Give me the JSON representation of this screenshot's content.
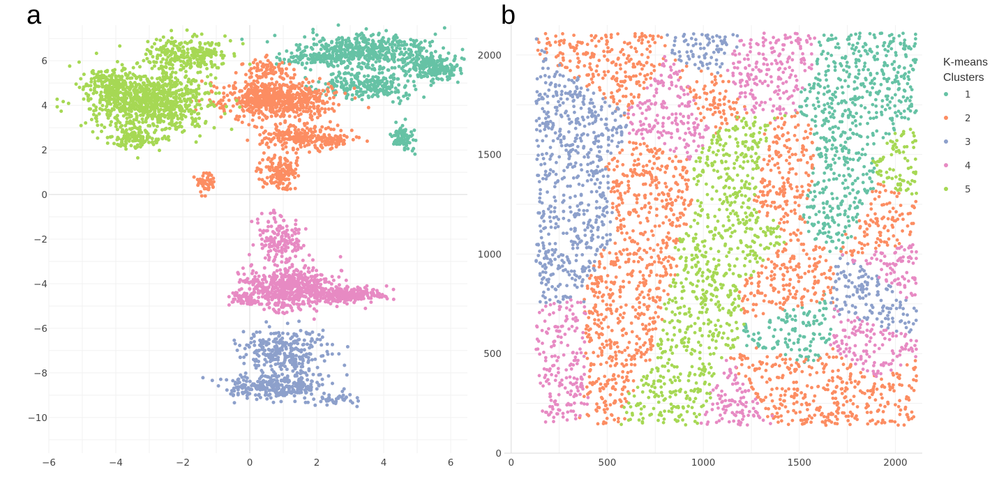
{
  "chart_data": [
    {
      "type": "scatter",
      "panel_label": "a",
      "xlabel": "",
      "ylabel": "",
      "xlim": [
        -6,
        6.5
      ],
      "ylim": [
        -11.6,
        7.6
      ],
      "grid": true,
      "zero_lines": true,
      "x_ticks": [
        -6,
        -4,
        -2,
        0,
        2,
        4,
        6
      ],
      "y_ticks": [
        -10,
        -8,
        -6,
        -4,
        -2,
        0,
        2,
        4,
        6
      ],
      "x_tick_labels": [
        "−6",
        "−4",
        "−2",
        "0",
        "2",
        "4",
        "6"
      ],
      "y_tick_labels": [
        "−10",
        "−8",
        "−6",
        "−4",
        "−2",
        "0",
        "2",
        "4",
        "6"
      ],
      "series": [
        {
          "name": "1",
          "color": "#66c2a5",
          "regions": [
            [
              3.5,
              6.4,
              1.7,
              0.7,
              500
            ],
            [
              5.5,
              5.7,
              0.7,
              0.5,
              200
            ],
            [
              3.6,
              4.9,
              1.2,
              0.6,
              250
            ],
            [
              4.6,
              2.6,
              0.3,
              0.5,
              80
            ],
            [
              1.8,
              6.1,
              0.9,
              0.3,
              100
            ]
          ]
        },
        {
          "name": "2",
          "color": "#fc8d62",
          "regions": [
            [
              0.8,
              4.3,
              1.5,
              0.8,
              650
            ],
            [
              1.4,
              2.6,
              0.9,
              0.5,
              200
            ],
            [
              0.9,
              1.0,
              0.5,
              0.7,
              150
            ],
            [
              -1.3,
              0.5,
              0.3,
              0.4,
              50
            ],
            [
              2.5,
              2.4,
              0.6,
              0.3,
              60
            ],
            [
              0.5,
              5.6,
              0.7,
              0.4,
              80
            ]
          ]
        },
        {
          "name": "3",
          "color": "#8da0cb",
          "regions": [
            [
              1.0,
              -7.0,
              1.2,
              0.9,
              280
            ],
            [
              0.8,
              -8.6,
              1.3,
              0.5,
              300
            ],
            [
              2.5,
              -9.2,
              0.5,
              0.3,
              40
            ]
          ]
        },
        {
          "name": "4",
          "color": "#e78ac3",
          "regions": [
            [
              1.2,
              -4.2,
              1.2,
              0.9,
              550
            ],
            [
              2.9,
              -4.5,
              0.9,
              0.3,
              250
            ],
            [
              0.9,
              -1.9,
              0.6,
              0.9,
              150
            ],
            [
              -0.1,
              -4.7,
              0.5,
              0.3,
              60
            ]
          ]
        },
        {
          "name": "5",
          "color": "#a6d854",
          "regions": [
            [
              -3.0,
              4.2,
              1.6,
              1.3,
              900
            ],
            [
              -1.9,
              6.3,
              1.2,
              0.7,
              250
            ],
            [
              -4.2,
              5.0,
              0.6,
              0.6,
              120
            ],
            [
              -3.5,
              2.5,
              0.8,
              0.4,
              100
            ]
          ]
        }
      ]
    },
    {
      "type": "scatter",
      "panel_label": "b",
      "xlabel": "",
      "ylabel": "",
      "xlim": [
        -10,
        2140
      ],
      "ylim": [
        0,
        2150
      ],
      "grid": true,
      "zero_lines": true,
      "x_ticks": [
        0,
        500,
        1000,
        1500,
        2000
      ],
      "y_ticks": [
        0,
        500,
        1000,
        1500,
        2000
      ],
      "x_tick_labels": [
        "0",
        "500",
        "1000",
        "1500",
        "2000"
      ],
      "y_tick_labels": [
        "0",
        "500",
        "1000",
        "1500",
        "2000"
      ],
      "data_extent": {
        "x": [
          130,
          2110
        ],
        "y": [
          140,
          2110
        ]
      },
      "n_points": 5200,
      "series": [
        {
          "name": "1",
          "color": "#66c2a5"
        },
        {
          "name": "2",
          "color": "#fc8d62"
        },
        {
          "name": "3",
          "color": "#8da0cb"
        },
        {
          "name": "4",
          "color": "#e78ac3"
        },
        {
          "name": "5",
          "color": "#a6d854"
        }
      ],
      "cluster_map": {
        "default": "4",
        "centers": [
          {
            "cluster": "1",
            "x": 1800,
            "y": 1750
          },
          {
            "cluster": "1",
            "x": 1720,
            "y": 1350
          },
          {
            "cluster": "1",
            "x": 1950,
            "y": 1900
          },
          {
            "cluster": "1",
            "x": 1430,
            "y": 640
          },
          {
            "cluster": "2",
            "x": 620,
            "y": 800
          },
          {
            "cluster": "2",
            "x": 520,
            "y": 550
          },
          {
            "cluster": "2",
            "x": 1400,
            "y": 780
          },
          {
            "cluster": "2",
            "x": 1750,
            "y": 300
          },
          {
            "cluster": "2",
            "x": 2000,
            "y": 1200
          },
          {
            "cluster": "2",
            "x": 700,
            "y": 1300
          },
          {
            "cluster": "2",
            "x": 1000,
            "y": 1800
          },
          {
            "cluster": "2",
            "x": 1400,
            "y": 1400
          },
          {
            "cluster": "2",
            "x": 550,
            "y": 2000
          },
          {
            "cluster": "2",
            "x": 1350,
            "y": 350
          },
          {
            "cluster": "2",
            "x": 2050,
            "y": 250
          },
          {
            "cluster": "3",
            "x": 300,
            "y": 1650
          },
          {
            "cluster": "3",
            "x": 330,
            "y": 1250
          },
          {
            "cluster": "3",
            "x": 1050,
            "y": 2050
          },
          {
            "cluster": "3",
            "x": 200,
            "y": 950
          },
          {
            "cluster": "3",
            "x": 1950,
            "y": 720
          },
          {
            "cluster": "4",
            "x": 250,
            "y": 550
          },
          {
            "cluster": "4",
            "x": 1900,
            "y": 550
          },
          {
            "cluster": "4",
            "x": 1180,
            "y": 230
          },
          {
            "cluster": "4",
            "x": 1250,
            "y": 1950
          },
          {
            "cluster": "4",
            "x": 900,
            "y": 1750
          },
          {
            "cluster": "4",
            "x": 2080,
            "y": 900
          },
          {
            "cluster": "5",
            "x": 1150,
            "y": 1050
          },
          {
            "cluster": "5",
            "x": 1000,
            "y": 700
          },
          {
            "cluster": "5",
            "x": 900,
            "y": 350
          },
          {
            "cluster": "5",
            "x": 1200,
            "y": 1450
          },
          {
            "cluster": "5",
            "x": 2080,
            "y": 1400
          }
        ]
      }
    }
  ],
  "legend": {
    "title_line1": "K-means",
    "title_line2": "Clusters",
    "placement": "right",
    "items": [
      {
        "label": "1",
        "color": "#66c2a5"
      },
      {
        "label": "2",
        "color": "#fc8d62"
      },
      {
        "label": "3",
        "color": "#8da0cb"
      },
      {
        "label": "4",
        "color": "#e78ac3"
      },
      {
        "label": "5",
        "color": "#a6d854"
      }
    ]
  }
}
